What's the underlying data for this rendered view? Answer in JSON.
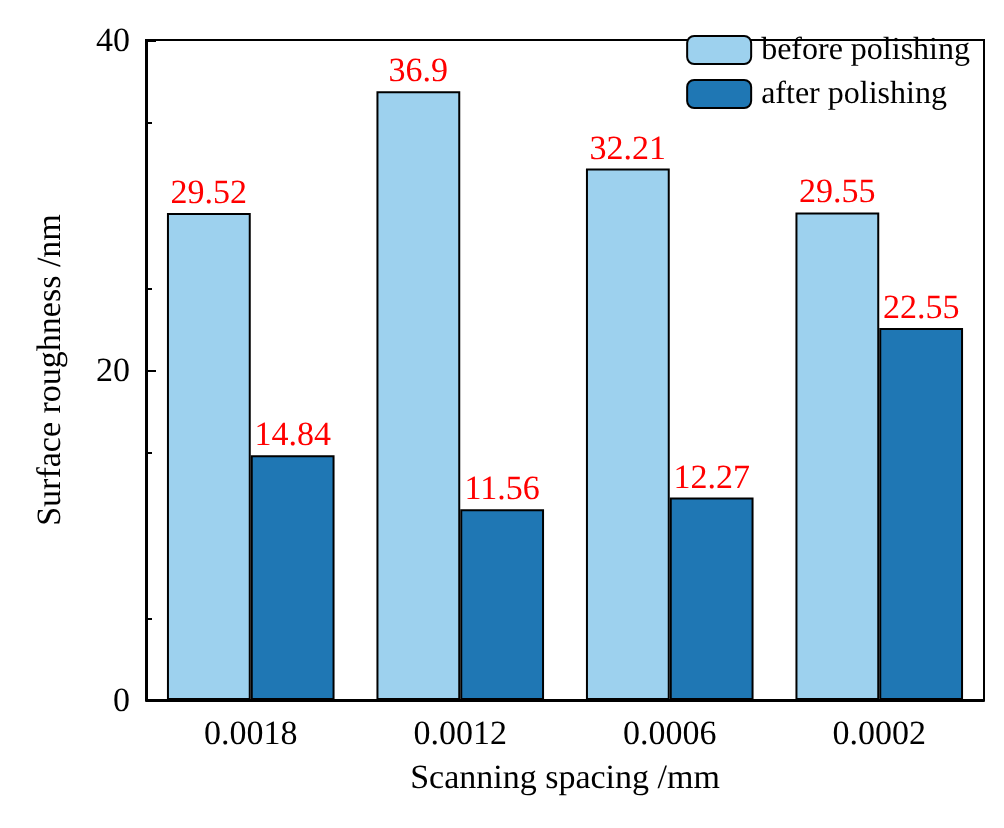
{
  "chart_data": {
    "type": "bar",
    "xlabel": "Scanning spacing /mm",
    "ylabel": "Surface roughness /nm",
    "categories": [
      "0.0018",
      "0.0012",
      "0.0006",
      "0.0002"
    ],
    "series": [
      {
        "name": "before polishing",
        "color": "#9dd1ee",
        "values": [
          29.52,
          36.9,
          32.21,
          29.55
        ]
      },
      {
        "name": "after polishing",
        "color": "#1f77b4",
        "values": [
          14.84,
          11.56,
          12.27,
          22.55
        ]
      }
    ],
    "ylim": [
      0,
      40
    ],
    "yticks": [
      0,
      20,
      40
    ],
    "grid": false,
    "legend": "top right",
    "data_labels": true
  }
}
